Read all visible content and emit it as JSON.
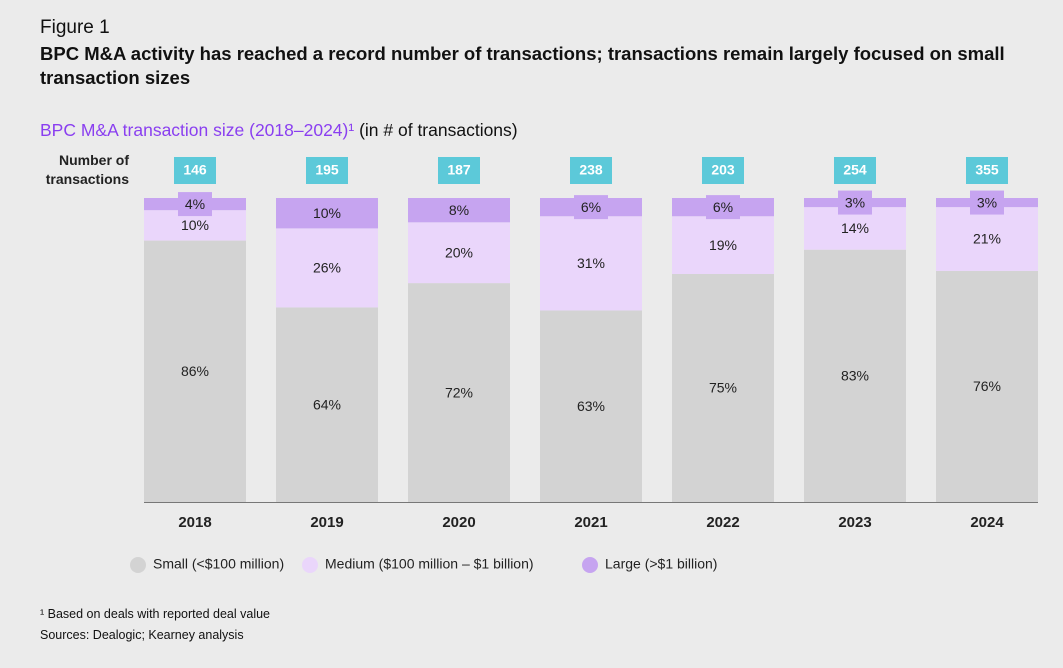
{
  "figure_label": "Figure 1",
  "chart_data": {
    "type": "stacked_bar_100",
    "title": "BPC M&A activity has reached a record number of transactions; transactions remain largely focused on small transaction sizes",
    "subtitle": "BPC M&A transaction size (2018–2024)¹",
    "subtitle_unit": "(in # of transactions)",
    "totals_label": "Number of transactions",
    "categories": [
      "2018",
      "2019",
      "2020",
      "2021",
      "2022",
      "2023",
      "2024"
    ],
    "totals": [
      146,
      195,
      187,
      238,
      203,
      254,
      355
    ],
    "series": [
      {
        "name": "Small (<$100 million)",
        "color": "#d3d3d3",
        "values": [
          86,
          64,
          72,
          63,
          75,
          83,
          76
        ],
        "value_labels": [
          "86%",
          "64%",
          "72%",
          "63%",
          "75%",
          "83%",
          "76%"
        ]
      },
      {
        "name": "Medium ($100 million – $1 billion)",
        "color": "#ead6fb",
        "values": [
          10,
          26,
          20,
          31,
          19,
          14,
          21
        ],
        "value_labels": [
          "10%",
          "26%",
          "20%",
          "31%",
          "19%",
          "14%",
          "21%"
        ]
      },
      {
        "name": "Large (>$1 billion)",
        "color": "#c6a4f0",
        "values": [
          4,
          10,
          8,
          6,
          6,
          3,
          3
        ],
        "value_labels": [
          "4%",
          "10%",
          "8%",
          "6%",
          "6%",
          "3%",
          "3%"
        ]
      }
    ],
    "total_box_color": "#5cc9d9",
    "subtitle_color": "#8a3ff0"
  },
  "footnotes": [
    "¹ Based on deals with reported deal value",
    "Sources: Dealogic; Kearney analysis"
  ]
}
